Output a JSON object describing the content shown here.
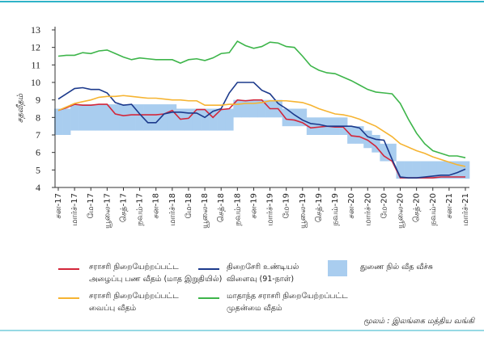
{
  "chart_data": {
    "type": "line",
    "y_label": "சதவீதம்",
    "categories": [
      "சன-17",
      null,
      "மார்ச்-17",
      null,
      "மே-17",
      null,
      "யூலை-17",
      null,
      "செத்-17",
      null,
      "நவம்-17",
      null,
      "சன-18",
      null,
      "மார்ச்-18",
      null,
      "மே-18",
      null,
      "யூலை-18",
      null,
      "செத்-18",
      null,
      "நவம்-18",
      null,
      "சன-19",
      null,
      "மார்ச்-19",
      null,
      "மே-19",
      null,
      "யூலை-19",
      null,
      "செத்-19",
      null,
      "நவம்-19",
      null,
      "சன-20",
      null,
      "மார்ச்-20",
      null,
      "மே-20",
      null,
      "யூலை-20",
      null,
      "செத்-20",
      null,
      "நவம்-20",
      null,
      "சன-21",
      null,
      "மார்ச்-21"
    ],
    "ylim": [
      4,
      13
    ],
    "yticks": [
      4,
      5,
      6,
      7,
      8,
      9,
      10,
      11,
      12,
      13
    ],
    "series": [
      {
        "name": "சராசரி நிறையேற்றப்பட்ட\nஅழைப்பு பண வீதம் (மாத இறுதியில்)",
        "color": "#d3263a",
        "values": [
          8.4,
          8.55,
          8.75,
          8.7,
          8.7,
          8.75,
          8.75,
          8.2,
          8.1,
          8.15,
          8.15,
          8.15,
          8.15,
          8.2,
          8.4,
          7.9,
          7.95,
          8.45,
          8.45,
          8.0,
          8.45,
          8.5,
          9.0,
          8.95,
          9.0,
          9.0,
          8.5,
          8.5,
          7.9,
          7.85,
          7.7,
          7.4,
          7.45,
          7.5,
          7.45,
          7.45,
          6.95,
          6.9,
          6.7,
          6.35,
          5.8,
          5.5,
          4.55,
          4.55,
          4.55,
          4.55,
          4.55,
          4.6,
          4.6,
          4.6,
          4.6
        ]
      },
      {
        "name": "திறைசேரி உண்டியல்\nவிளைவு (91-நாள்)",
        "color": "#1c3a8c",
        "values": [
          9.05,
          9.35,
          9.65,
          9.7,
          9.6,
          9.6,
          9.4,
          8.85,
          8.7,
          8.75,
          8.2,
          7.7,
          7.7,
          8.2,
          8.3,
          8.3,
          8.25,
          8.25,
          8.0,
          8.35,
          8.5,
          9.4,
          10.0,
          10.0,
          10.0,
          9.55,
          9.35,
          8.8,
          8.5,
          8.15,
          7.85,
          7.65,
          7.6,
          7.5,
          7.5,
          7.5,
          7.5,
          7.4,
          6.9,
          6.75,
          6.7,
          5.6,
          4.6,
          4.55,
          4.55,
          4.6,
          4.65,
          4.7,
          4.7,
          4.85,
          5.05
        ]
      },
      {
        "name": "துணை நில் வீத வீச்சு",
        "color": "#a9cdef",
        "type": "band",
        "low": [
          7.0,
          7.0,
          7.25,
          7.25,
          7.25,
          7.25,
          7.25,
          7.25,
          7.25,
          7.25,
          7.25,
          7.25,
          7.25,
          7.25,
          7.25,
          7.25,
          7.25,
          7.25,
          7.25,
          7.25,
          7.25,
          7.25,
          8.0,
          8.0,
          8.0,
          8.0,
          8.0,
          8.0,
          7.5,
          7.5,
          7.5,
          7.0,
          7.0,
          7.0,
          7.0,
          7.0,
          6.5,
          6.5,
          6.25,
          6.0,
          5.5,
          5.5,
          4.5,
          4.5,
          4.5,
          4.5,
          4.5,
          4.5,
          4.5,
          4.5,
          4.5
        ],
        "high": [
          8.5,
          8.5,
          8.75,
          8.75,
          8.75,
          8.75,
          8.75,
          8.75,
          8.75,
          8.75,
          8.75,
          8.75,
          8.75,
          8.75,
          8.75,
          8.5,
          8.5,
          8.5,
          8.5,
          8.5,
          8.5,
          8.5,
          9.0,
          9.0,
          9.0,
          9.0,
          9.0,
          9.0,
          8.5,
          8.5,
          8.5,
          8.0,
          8.0,
          8.0,
          8.0,
          8.0,
          7.5,
          7.5,
          7.25,
          7.0,
          6.5,
          6.5,
          5.5,
          5.5,
          5.5,
          5.5,
          5.5,
          5.5,
          5.5,
          5.5,
          5.5
        ]
      },
      {
        "name": "சராசரி நிறையேற்றப்பட்ட\nவைப்பு வீதம்",
        "color": "#f6b432",
        "values": [
          8.4,
          8.6,
          8.8,
          8.9,
          9.0,
          9.15,
          9.2,
          9.2,
          9.25,
          9.2,
          9.15,
          9.1,
          9.1,
          9.05,
          9.0,
          9.0,
          8.95,
          8.95,
          8.7,
          8.7,
          8.7,
          8.75,
          8.75,
          8.8,
          8.8,
          8.85,
          8.95,
          8.95,
          8.95,
          8.9,
          8.85,
          8.7,
          8.5,
          8.35,
          8.2,
          8.15,
          8.05,
          7.9,
          7.7,
          7.5,
          7.2,
          6.9,
          6.5,
          6.3,
          6.1,
          5.95,
          5.75,
          5.6,
          5.45,
          5.3,
          5.2
        ]
      },
      {
        "name": "மாதாந்த சராசரி நிறையேற்றப்பட்ட\nமுதன்மை வீதம்",
        "color": "#3db54a",
        "values": [
          11.5,
          11.55,
          11.55,
          11.7,
          11.65,
          11.8,
          11.85,
          11.65,
          11.45,
          11.3,
          11.4,
          11.35,
          11.3,
          11.3,
          11.3,
          11.1,
          11.3,
          11.35,
          11.25,
          11.4,
          11.65,
          11.7,
          12.35,
          12.1,
          11.95,
          12.05,
          12.3,
          12.25,
          12.05,
          12.0,
          11.5,
          10.95,
          10.7,
          10.55,
          10.5,
          10.3,
          10.1,
          9.85,
          9.6,
          9.45,
          9.4,
          9.35,
          8.8,
          7.9,
          7.1,
          6.5,
          6.1,
          5.95,
          5.8,
          5.8,
          5.7
        ]
      }
    ],
    "source": "மூலம் : இலங்கை மத்திய வங்கி"
  }
}
